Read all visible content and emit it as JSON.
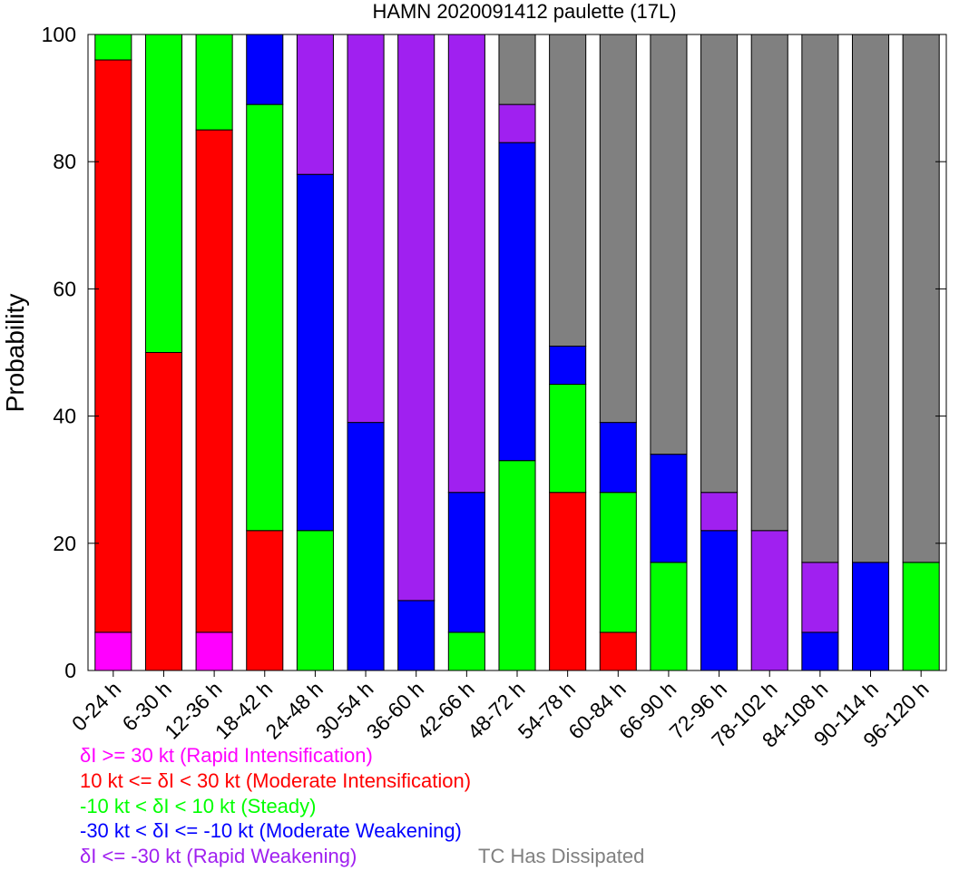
{
  "chart_data": {
    "type": "bar",
    "stacked": true,
    "title": "HAMN 2020091412 paulette (17L)",
    "xlabel": "",
    "ylabel": "Probability",
    "ylim": [
      0,
      100
    ],
    "yticks": [
      0,
      20,
      40,
      60,
      80,
      100
    ],
    "categories": [
      "0-24 h",
      "6-30 h",
      "12-36 h",
      "18-42 h",
      "24-48 h",
      "30-54 h",
      "36-60 h",
      "42-66 h",
      "48-72 h",
      "54-78 h",
      "60-84 h",
      "66-90 h",
      "72-96 h",
      "78-102 h",
      "84-108 h",
      "90-114 h",
      "96-120 h"
    ],
    "series": [
      {
        "name": "δI >= 30 kt (Rapid Intensification)",
        "color": "#ff00ff",
        "values": [
          6,
          0,
          6,
          0,
          0,
          0,
          0,
          0,
          0,
          0,
          0,
          0,
          0,
          0,
          0,
          0,
          0
        ]
      },
      {
        "name": "10 kt <= δI < 30 kt (Moderate Intensification)",
        "color": "#ff0000",
        "values": [
          90,
          50,
          79,
          22,
          0,
          0,
          0,
          0,
          0,
          28,
          6,
          0,
          0,
          0,
          0,
          0,
          0
        ]
      },
      {
        "name": "-10 kt < δI < 10 kt (Steady)",
        "color": "#00ff00",
        "values": [
          4,
          50,
          15,
          67,
          22,
          0,
          0,
          6,
          33,
          17,
          22,
          17,
          0,
          0,
          0,
          0,
          17
        ]
      },
      {
        "name": "-30 kt < δI <= -10 kt (Moderate Weakening)",
        "color": "#0000ff",
        "values": [
          0,
          0,
          0,
          11,
          56,
          39,
          11,
          22,
          50,
          6,
          11,
          17,
          22,
          0,
          6,
          17,
          0
        ]
      },
      {
        "name": "δI <= -30 kt (Rapid Weakening)",
        "color": "#a020f0",
        "values": [
          0,
          0,
          0,
          0,
          22,
          61,
          89,
          72,
          6,
          0,
          0,
          0,
          6,
          22,
          11,
          0,
          0
        ]
      },
      {
        "name": "TC Has Dissipated",
        "color": "#808080",
        "values": [
          0,
          0,
          0,
          0,
          0,
          0,
          0,
          0,
          11,
          49,
          61,
          66,
          72,
          78,
          83,
          83,
          83
        ]
      }
    ],
    "legend_position": "bottom-left"
  }
}
